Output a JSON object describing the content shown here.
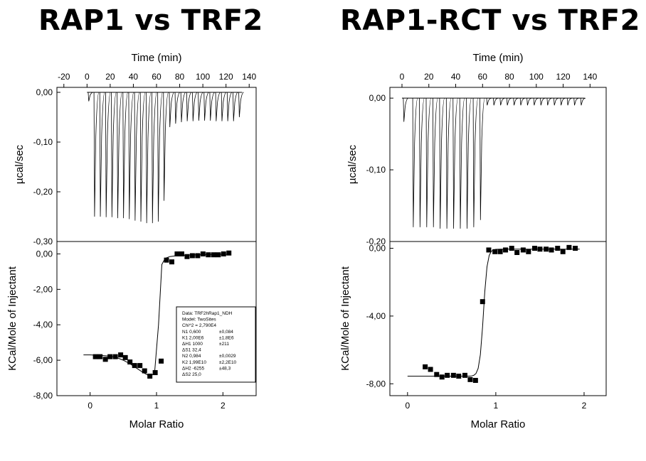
{
  "titles": {
    "left": "RAP1 vs TRF2",
    "right": "RAP1-RCT vs TRF2"
  },
  "chart_data": [
    {
      "id": "left",
      "type": "line",
      "title": "RAP1 vs TRF2",
      "top": {
        "type": "line",
        "xlabel": "Time (min)",
        "ylabel": "µcal/sec",
        "xlim": [
          -26,
          146
        ],
        "ylim": [
          -0.3,
          0.01
        ],
        "xticks": [
          -20,
          0,
          20,
          40,
          60,
          80,
          100,
          120,
          140
        ],
        "xtick_labels": [
          "-20",
          "0",
          "20",
          "40",
          "60",
          "80",
          "100",
          "120",
          "140"
        ],
        "yticks": [
          0.0,
          -0.1,
          -0.2,
          -0.3
        ],
        "ytick_labels": [
          "0,00",
          "-0,10",
          "-0,20",
          "-0,30"
        ],
        "baseline": [
          0,
          0
        ],
        "baseline_range": [
          0,
          134
        ],
        "injection_times": [
          1,
          6,
          11,
          16,
          21,
          26,
          31,
          36,
          41,
          46,
          51,
          56,
          61,
          66,
          71,
          76,
          81,
          86,
          91,
          96,
          101,
          106,
          111,
          116,
          121,
          126,
          131
        ],
        "peak_values": [
          -0.018,
          -0.25,
          -0.25,
          -0.251,
          -0.251,
          -0.253,
          -0.253,
          -0.255,
          -0.258,
          -0.26,
          -0.263,
          -0.263,
          -0.26,
          -0.218,
          -0.07,
          -0.063,
          -0.06,
          -0.058,
          -0.058,
          -0.057,
          -0.057,
          -0.057,
          -0.058,
          -0.058,
          -0.058,
          -0.058,
          -0.05
        ]
      },
      "bottom": {
        "type": "scatter",
        "xlabel": "Molar Ratio",
        "ylabel": "KCal/Mole of Injectant",
        "xlim": [
          -0.5,
          2.5
        ],
        "ylim": [
          -8.0,
          0.7
        ],
        "xticks": [
          0,
          1,
          2
        ],
        "xtick_labels": [
          "0",
          "1",
          "2"
        ],
        "yticks": [
          0,
          -2,
          -4,
          -6,
          -8
        ],
        "ytick_labels": [
          "0,00",
          "-2,00",
          "-4,00",
          "-6,00",
          "-8,00"
        ],
        "x": [
          0.08,
          0.15,
          0.23,
          0.3,
          0.38,
          0.46,
          0.53,
          0.6,
          0.67,
          0.75,
          0.82,
          0.9,
          0.98,
          1.07,
          1.15,
          1.23,
          1.31,
          1.38,
          1.46,
          1.54,
          1.62,
          1.7,
          1.78,
          1.86,
          1.93,
          2.01,
          2.09
        ],
        "y": [
          -5.8,
          -5.8,
          -5.95,
          -5.8,
          -5.8,
          -5.7,
          -5.85,
          -6.1,
          -6.3,
          -6.3,
          -6.6,
          -6.9,
          -6.7,
          -6.05,
          -0.35,
          -0.45,
          0.0,
          0.0,
          -0.15,
          -0.1,
          -0.1,
          0.0,
          -0.05,
          -0.05,
          -0.05,
          0.0,
          0.05
        ],
        "fit_x": [
          -0.1,
          0.0,
          0.1,
          0.2,
          0.3,
          0.4,
          0.5,
          0.6,
          0.7,
          0.8,
          0.9,
          0.97,
          1.03,
          1.08,
          1.13,
          1.2,
          1.3,
          1.4,
          1.5,
          1.6,
          1.7,
          1.8,
          1.9,
          2.0,
          2.1
        ],
        "fit_y": [
          -5.7,
          -5.7,
          -5.72,
          -5.74,
          -5.77,
          -5.85,
          -6.0,
          -6.2,
          -6.45,
          -6.7,
          -6.9,
          -6.75,
          -4.0,
          -0.6,
          -0.25,
          -0.15,
          -0.1,
          -0.08,
          -0.06,
          -0.05,
          -0.04,
          -0.03,
          -0.03,
          -0.02,
          -0.02
        ]
      },
      "fit_box": [
        [
          "Data: TRF2hRap1_NDH",
          ""
        ],
        [
          "Model: TwoSites",
          ""
        ],
        [
          "Chi^2 = 2,790E4",
          ""
        ],
        [
          "N1    0,600",
          "±0,084"
        ],
        [
          "K1    2,00E6",
          "±1,8E6"
        ],
        [
          "ΔH1   1000",
          "±211"
        ],
        [
          "ΔS1   32,4",
          ""
        ],
        [
          "N2    0,984",
          "±0,0029"
        ],
        [
          "K2    1,99E10",
          "±2,2E10"
        ],
        [
          "ΔH2   -6255",
          "±48,3"
        ],
        [
          "ΔS2   25,0",
          ""
        ]
      ]
    },
    {
      "id": "right",
      "type": "line",
      "title": "RAP1-RCT vs TRF2",
      "top": {
        "type": "line",
        "xlabel": "Time (min)",
        "ylabel": "µcal/sec",
        "xlim": [
          -9,
          152
        ],
        "ylim": [
          -0.2,
          0.015
        ],
        "xticks": [
          0,
          20,
          40,
          60,
          80,
          100,
          120,
          140
        ],
        "xtick_labels": [
          "0",
          "20",
          "40",
          "60",
          "80",
          "100",
          "120",
          "140"
        ],
        "yticks": [
          0.0,
          -0.1,
          -0.2
        ],
        "ytick_labels": [
          "0,00",
          "-0,10",
          "-0,20"
        ],
        "baseline": [
          0,
          0
        ],
        "baseline_range": [
          0,
          136
        ],
        "injection_times": [
          1,
          8,
          13,
          18,
          23,
          28,
          33,
          38,
          43,
          48,
          53,
          58,
          63,
          68,
          73,
          78,
          83,
          88,
          93,
          98,
          103,
          108,
          113,
          118,
          123,
          128,
          133
        ],
        "peak_values": [
          -0.033,
          -0.18,
          -0.18,
          -0.18,
          -0.18,
          -0.182,
          -0.182,
          -0.182,
          -0.182,
          -0.182,
          -0.18,
          -0.17,
          -0.01,
          -0.01,
          -0.01,
          -0.01,
          -0.01,
          -0.01,
          -0.01,
          -0.01,
          -0.01,
          -0.01,
          -0.01,
          -0.01,
          -0.01,
          -0.01,
          -0.01
        ]
      },
      "bottom": {
        "type": "scatter",
        "xlabel": "Molar Ratio",
        "ylabel": "KCal/Mole of Injectant",
        "xlim": [
          -0.2,
          2.25
        ],
        "ylim": [
          -8.7,
          0.4
        ],
        "xticks": [
          0,
          1,
          2
        ],
        "xtick_labels": [
          "0",
          "1",
          "2"
        ],
        "yticks": [
          0,
          -4,
          -8
        ],
        "ytick_labels": [
          "0,00",
          "-4,00",
          "-8,00"
        ],
        "x": [
          0.2,
          0.26,
          0.33,
          0.39,
          0.45,
          0.52,
          0.58,
          0.65,
          0.71,
          0.77,
          0.85,
          0.92,
          0.99,
          1.05,
          1.11,
          1.18,
          1.24,
          1.31,
          1.37,
          1.44,
          1.5,
          1.57,
          1.63,
          1.7,
          1.76,
          1.83,
          1.9
        ],
        "y": [
          -7.0,
          -7.15,
          -7.45,
          -7.6,
          -7.5,
          -7.5,
          -7.55,
          -7.5,
          -7.75,
          -7.8,
          -3.15,
          -0.1,
          -0.2,
          -0.2,
          -0.1,
          0.0,
          -0.25,
          -0.1,
          -0.2,
          0.0,
          -0.05,
          -0.05,
          -0.1,
          0.0,
          -0.2,
          0.05,
          0.0
        ]
      }
    }
  ]
}
